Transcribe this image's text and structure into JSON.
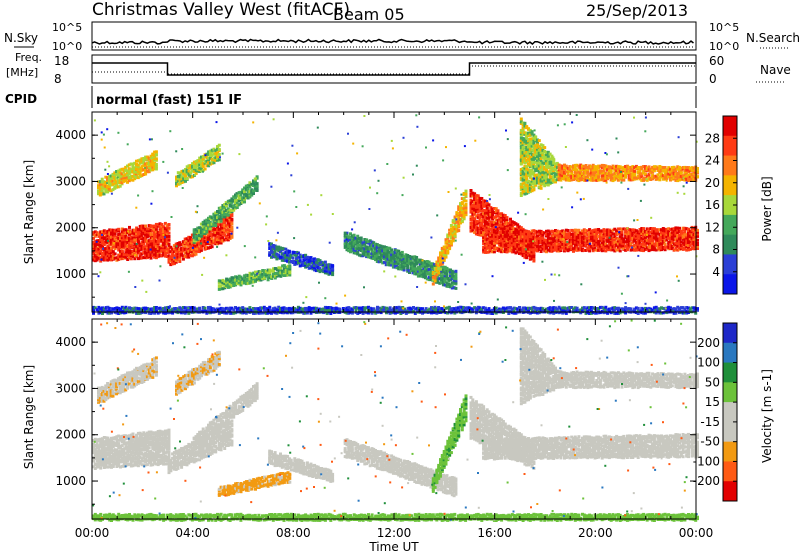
{
  "header": {
    "title": "Christmas Valley West (fitACF)",
    "beam": "Beam 05",
    "date": "25/Sep/2013"
  },
  "top_panels": {
    "nsky_label": "N.Sky",
    "nsky_tick_top": "10^5",
    "nsky_tick_bottom": "10^0",
    "nsky_right_top": "10^5",
    "nsky_right_bottom": "10^0",
    "nsearch_label": "N.Search",
    "freq_label_line1": "Freq.",
    "freq_label_line2": "[MHz]",
    "freq_tick_top": "18",
    "freq_tick_bottom": "8",
    "nave_tick_top": "60",
    "nave_tick_bottom": "0",
    "nave_label": "Nave",
    "cpid_label": "CPID",
    "cpid_value": "normal (fast) 151 IF"
  },
  "colors": {
    "power": [
      "#0b16e8",
      "#2b3fd6",
      "#2f8a5a",
      "#44a85a",
      "#a8d83a",
      "#f4b400",
      "#ff7a1a",
      "#ff3b14",
      "#e10000"
    ],
    "velocity": [
      "#1e28c8",
      "#2a78c0",
      "#1f8f3a",
      "#6cc23a",
      "#c8c8c0",
      "#c8c8c0",
      "#f29a12",
      "#ff5a14",
      "#e20000"
    ]
  },
  "chart_data": [
    {
      "type": "heatmap",
      "panel": "power",
      "ylabel": "Slant Range [km]",
      "xlabel": "",
      "x_ticks": [
        "00:00",
        "04:00",
        "08:00",
        "12:00",
        "16:00",
        "20:00",
        "00:00"
      ],
      "y_ticks": [
        "1000",
        "2000",
        "3000",
        "4000"
      ],
      "ylim": [
        180,
        4500
      ],
      "xlim_hours": [
        0,
        24
      ],
      "colorbar_label": "Power [dB]",
      "colorbar_ticks": [
        "4",
        "8",
        "12",
        "16",
        "20",
        "24",
        "28"
      ],
      "colorbar_range": [
        0,
        32
      ],
      "bands": [
        {
          "from_h": 0.0,
          "to_h": 3.0,
          "range_start": [
            1300,
            1950
          ],
          "range_end": [
            1400,
            2150
          ],
          "level": 28
        },
        {
          "from_h": 0.2,
          "to_h": 2.5,
          "range_start": [
            2700,
            3050
          ],
          "range_end": [
            3300,
            3700
          ],
          "level": 18
        },
        {
          "from_h": 3.0,
          "to_h": 5.5,
          "range_start": [
            1200,
            1600
          ],
          "range_end": [
            1800,
            2350
          ],
          "level": 27
        },
        {
          "from_h": 3.3,
          "to_h": 5.0,
          "range_start": [
            2900,
            3200
          ],
          "range_end": [
            3500,
            3850
          ],
          "level": 16
        },
        {
          "from_h": 4.0,
          "to_h": 6.5,
          "range_start": [
            1700,
            2000
          ],
          "range_end": [
            2800,
            3150
          ],
          "level": 12
        },
        {
          "from_h": 5.0,
          "to_h": 7.8,
          "range_start": [
            700,
            900
          ],
          "range_end": [
            1000,
            1250
          ],
          "level": 13
        },
        {
          "from_h": 7.0,
          "to_h": 9.5,
          "range_start": [
            1400,
            1700
          ],
          "range_end": [
            1000,
            1250
          ],
          "level": 6
        },
        {
          "from_h": 10.0,
          "to_h": 14.4,
          "range_start": [
            1550,
            1950
          ],
          "range_end": [
            700,
            1100
          ],
          "level": 10
        },
        {
          "from_h": 13.5,
          "to_h": 14.8,
          "range_start": [
            800,
            1100
          ],
          "range_end": [
            2300,
            2900
          ],
          "level": 20
        },
        {
          "from_h": 15.0,
          "to_h": 17.5,
          "range_start": [
            1950,
            2850
          ],
          "range_end": [
            1300,
            1850
          ],
          "level": 28
        },
        {
          "from_h": 15.5,
          "to_h": 24.0,
          "range_start": [
            1500,
            1950
          ],
          "range_end": [
            1550,
            2050
          ],
          "level": 28
        },
        {
          "from_h": 17.0,
          "to_h": 18.5,
          "range_start": [
            2700,
            4400
          ],
          "range_end": [
            3050,
            3400
          ],
          "level": 16
        },
        {
          "from_h": 18.5,
          "to_h": 24.0,
          "range_start": [
            3050,
            3400
          ],
          "range_end": [
            3050,
            3350
          ],
          "level": 22
        },
        {
          "from_h": 0.0,
          "to_h": 24.0,
          "range_start": [
            180,
            320
          ],
          "range_end": [
            180,
            320
          ],
          "level": 5
        }
      ]
    },
    {
      "type": "heatmap",
      "panel": "velocity",
      "ylabel": "Slant Range [km]",
      "xlabel": "Time UT",
      "x_ticks": [
        "00:00",
        "04:00",
        "08:00",
        "12:00",
        "16:00",
        "20:00",
        "00:00"
      ],
      "y_ticks": [
        "1000",
        "2000",
        "3000",
        "4000"
      ],
      "ylim": [
        180,
        4500
      ],
      "xlim_hours": [
        0,
        24
      ],
      "colorbar_label": "Velocity [m s-1]",
      "colorbar_ticks": [
        "200",
        "100",
        "50",
        "15",
        "-15",
        "-50",
        "-100",
        "-200"
      ],
      "colorbar_range": [
        -250,
        250
      ],
      "bands": [
        {
          "from_h": 0.0,
          "to_h": 3.0,
          "range_start": [
            1300,
            1950
          ],
          "range_end": [
            1400,
            2150
          ],
          "level": 0
        },
        {
          "from_h": 0.2,
          "to_h": 2.5,
          "range_start": [
            2700,
            3050
          ],
          "range_end": [
            3300,
            3700
          ],
          "level": -40
        },
        {
          "from_h": 3.0,
          "to_h": 5.5,
          "range_start": [
            1200,
            1600
          ],
          "range_end": [
            1800,
            2350
          ],
          "level": 0
        },
        {
          "from_h": 3.3,
          "to_h": 5.0,
          "range_start": [
            2900,
            3200
          ],
          "range_end": [
            3500,
            3850
          ],
          "level": -45
        },
        {
          "from_h": 4.0,
          "to_h": 6.5,
          "range_start": [
            1700,
            2000
          ],
          "range_end": [
            2800,
            3150
          ],
          "level": -30
        },
        {
          "from_h": 5.0,
          "to_h": 7.8,
          "range_start": [
            700,
            900
          ],
          "range_end": [
            1000,
            1250
          ],
          "level": -60
        },
        {
          "from_h": 7.0,
          "to_h": 9.5,
          "range_start": [
            1400,
            1700
          ],
          "range_end": [
            1000,
            1250
          ],
          "level": -20
        },
        {
          "from_h": 10.0,
          "to_h": 14.4,
          "range_start": [
            1550,
            1950
          ],
          "range_end": [
            700,
            1100
          ],
          "level": 0
        },
        {
          "from_h": 13.5,
          "to_h": 14.8,
          "range_start": [
            800,
            1100
          ],
          "range_end": [
            2300,
            2900
          ],
          "level": 40
        },
        {
          "from_h": 15.0,
          "to_h": 17.5,
          "range_start": [
            1950,
            2850
          ],
          "range_end": [
            1300,
            1850
          ],
          "level": 0
        },
        {
          "from_h": 15.5,
          "to_h": 24.0,
          "range_start": [
            1500,
            1950
          ],
          "range_end": [
            1550,
            2050
          ],
          "level": 0
        },
        {
          "from_h": 17.0,
          "to_h": 18.5,
          "range_start": [
            2700,
            4400
          ],
          "range_end": [
            3050,
            3400
          ],
          "level": 0
        },
        {
          "from_h": 18.5,
          "to_h": 24.0,
          "range_start": [
            3050,
            3400
          ],
          "range_end": [
            3050,
            3350
          ],
          "level": 0
        },
        {
          "from_h": 0.0,
          "to_h": 24.0,
          "range_start": [
            180,
            320
          ],
          "range_end": [
            180,
            320
          ],
          "level": 30
        }
      ]
    }
  ]
}
